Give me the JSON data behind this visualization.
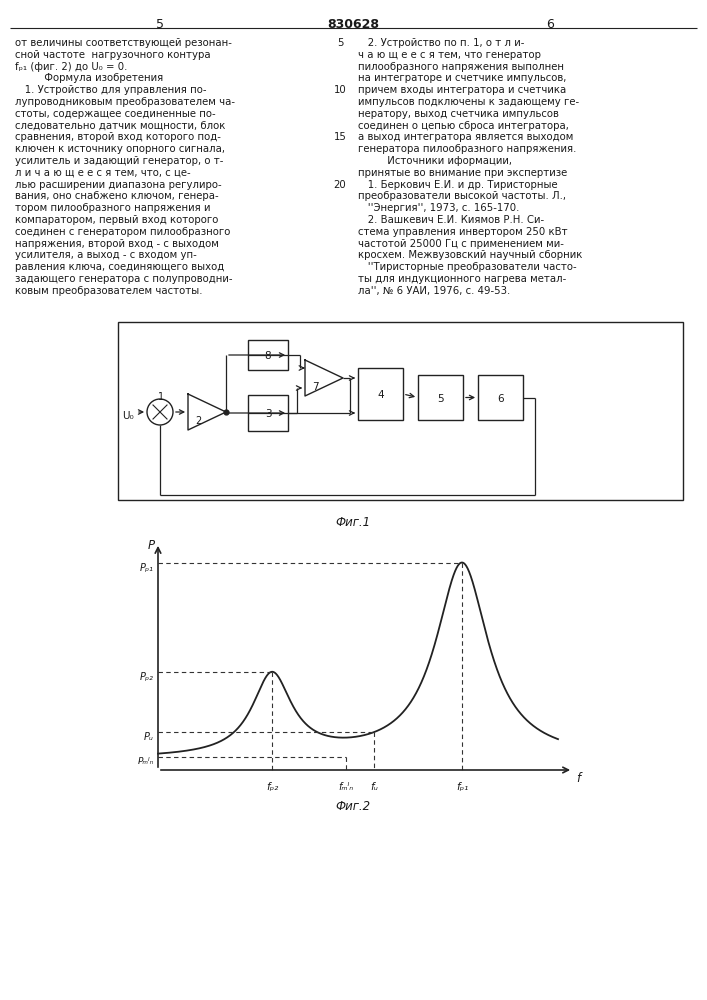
{
  "title_center": "830628",
  "page_left": "5",
  "page_right": "6",
  "fig1_caption": "Фиг.1",
  "fig2_caption": "Фиг.2",
  "left_text": [
    "от величины соответствующей резонан-",
    "сной частоте  нагрузочного контура",
    "fₚ₁ (фиг. 2) до U₀ = 0.",
    "         Формула изобретения",
    "   1. Устройство для управления по-",
    "лупроводниковым преобразователем ча-",
    "стоты, содержащее соединенные по-",
    "следовательно датчик мощности, блок",
    "сравнения, второй вход которого под-",
    "ключен к источнику опорного сигнала,",
    "усилитель и задающий генератор, о т-",
    "л и ч а ю щ е е с я тем, что, с це-",
    "лью расширении диапазона регулиро-",
    "вания, оно снабжено ключом, генера-",
    "тором пилообразного напряжения и",
    "компаратором, первый вход которого",
    "соединен с генератором пилообразного",
    "напряжения, второй вход - с выходом",
    "усилителя, а выход - с входом уп-",
    "равления ключа, соединяющего выход",
    "задающего генератора с полупроводни-",
    "ковым преобразователем частоты."
  ],
  "right_text": [
    "   2. Устройство по п. 1, о т л и-",
    "ч а ю щ е е с я тем, что генератор",
    "пилообразного напряжения выполнен",
    "на интеграторе и счетчике импульсов,",
    "причем входы интегратора и счетчика",
    "импульсов подключены к задающему ге-",
    "нератору, выход счетчика импульсов",
    "соединен о цепью сброса интегратора,",
    "а выход интегратора является выходом",
    "генератора пилообразного напряжения.",
    "         Источники иформации,",
    "принятые во внимание при экспертизе",
    "   1. Беркович Е.И. и др. Тиристорные",
    "преобразователи высокой частоты. Л.,",
    "   ''Энергия'', 1973, с. 165-170.",
    "   2. Вашкевич Е.И. Киямов Р.Н. Си-",
    "стема управления инвертором 250 кВт",
    "частотой 25000 Гц с применением ми-",
    "кросхем. Межвузовский научный сборник",
    "   ''Тиристорные преобразователи часто-",
    "ты для индукционного нагрева метал-",
    "ла'', № 6 УАИ, 1976, с. 49-53."
  ],
  "bg_color": "#ffffff",
  "text_color": "#1a1a1a",
  "line_color": "#222222"
}
